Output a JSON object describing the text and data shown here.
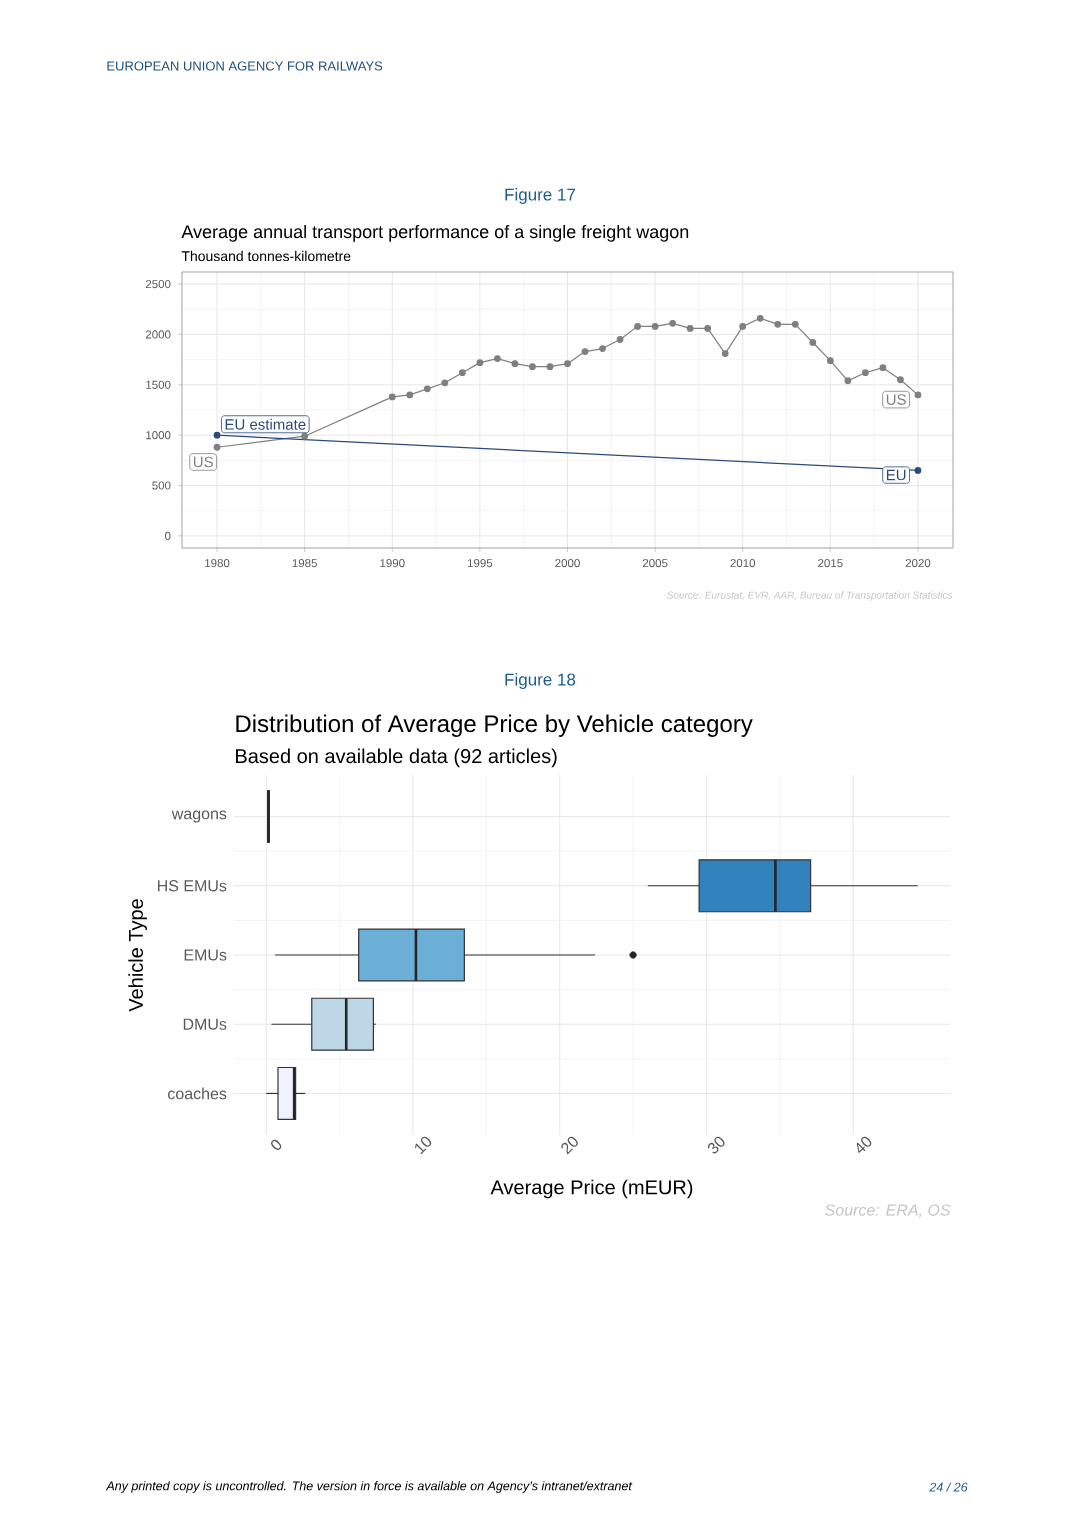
{
  "chart_data": [
    {
      "type": "line",
      "title": "Average annual transport performance of a single freight wagon",
      "subtitle": "Thousand tonnes-kilometre",
      "x": [
        1980,
        1985,
        1990,
        1991,
        1992,
        1993,
        1994,
        1995,
        1996,
        1997,
        1998,
        1999,
        2000,
        2001,
        2002,
        2003,
        2004,
        2005,
        2006,
        2007,
        2008,
        2009,
        2010,
        2011,
        2012,
        2013,
        2014,
        2015,
        2016,
        2017,
        2018,
        2019,
        2020
      ],
      "series": [
        {
          "name": "US",
          "color": "#7f7f7f",
          "values": [
            880,
            990,
            1380,
            1400,
            1460,
            1520,
            1620,
            1720,
            1760,
            1710,
            1680,
            1680,
            1710,
            1830,
            1860,
            1950,
            2080,
            2080,
            2110,
            2060,
            2060,
            1810,
            2080,
            2160,
            2100,
            2100,
            1920,
            1740,
            1540,
            1620,
            1670,
            1550,
            1400
          ]
        },
        {
          "name": "EU",
          "color": "#2b4a7a",
          "x": [
            1980,
            2020
          ],
          "values": [
            1000,
            650
          ]
        }
      ],
      "xlim": [
        1978,
        2022
      ],
      "ylim": [
        -120,
        2620
      ],
      "xticks": [
        1980,
        1985,
        1990,
        1995,
        2000,
        2005,
        2010,
        2015,
        2020
      ],
      "yticks": [
        0,
        500,
        1000,
        1500,
        2000,
        2500
      ],
      "grid": true,
      "marker": "circle",
      "legend": "right",
      "annotations": [
        "EUROPEAN UNION AGENCY FOR RAILWAYS",
        "Figure 17",
        {
          "text": "EU estimate",
          "x": 1980,
          "y": 1000
        },
        {
          "text": "US",
          "x": 1980,
          "y": 880
        },
        "Source: Eurostat, EVR, AAR, Bureau of Transportation Statistics"
      ]
    },
    {
      "type": "box",
      "orientation": "horizontal",
      "title": "Distribution of Average Price by Vehicle category",
      "subtitle": "Based on available data (92 articles)",
      "xlabel": "Average Price (mEUR)",
      "ylabel": "Vehicle Type",
      "categories": [
        "wagons",
        "HS EMUs",
        "EMUs",
        "DMUs",
        "coaches"
      ],
      "colors": [
        "#08519c",
        "#3182bd",
        "#6baed6",
        "#bdd7e7",
        "#eff3ff"
      ],
      "boxes": [
        {
          "low": 0.1,
          "q1": 0.1,
          "median": 0.15,
          "q3": 0.2,
          "high": 0.2
        },
        {
          "low": 26.0,
          "q1": 29.5,
          "median": 34.7,
          "q3": 37.1,
          "high": 44.4
        },
        {
          "low": 0.6,
          "q1": 6.3,
          "median": 10.2,
          "q3": 13.5,
          "high": 22.4,
          "outliers": [
            25.0
          ]
        },
        {
          "low": 0.35,
          "q1": 3.1,
          "median": 5.45,
          "q3": 7.3,
          "high": 7.45
        },
        {
          "low": 0.0,
          "q1": 0.8,
          "median": 1.9,
          "q3": 2.0,
          "high": 2.65
        }
      ],
      "xlim": [
        -2.2,
        46.6
      ],
      "xticks": [
        0,
        10,
        20,
        30,
        40
      ],
      "grid": true,
      "annotations": [
        "Figure 18",
        "Source: ERA, OS",
        "Any printed copy is uncontrolled. The version in force is available on Agency’s intranet/extranet",
        "24 / 26"
      ]
    }
  ]
}
